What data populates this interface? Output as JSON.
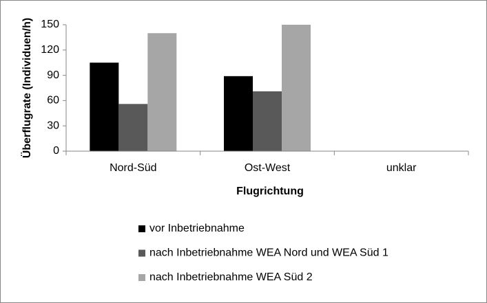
{
  "chart_data": {
    "type": "bar",
    "x_label": "Flugrichtung",
    "y_label": "Überflugrate (Individuen/h)",
    "categories": [
      "Nord-Süd",
      "Ost-West",
      "unklar"
    ],
    "series": [
      {
        "name": "vor Inbetriebnahme",
        "color": "#000000",
        "values": [
          105,
          89,
          0
        ]
      },
      {
        "name": "nach Inbetriebnahme WEA Nord und WEA Süd 1",
        "color": "#595959",
        "values": [
          56,
          71,
          0
        ]
      },
      {
        "name": "nach Inbetriebnahme WEA Süd 2",
        "color": "#a6a6a6",
        "values": [
          140,
          150,
          0
        ]
      }
    ],
    "ylim": [
      0,
      150
    ],
    "yticks": [
      0,
      30,
      60,
      90,
      120,
      150
    ],
    "grid": false,
    "legend": "bottom"
  }
}
